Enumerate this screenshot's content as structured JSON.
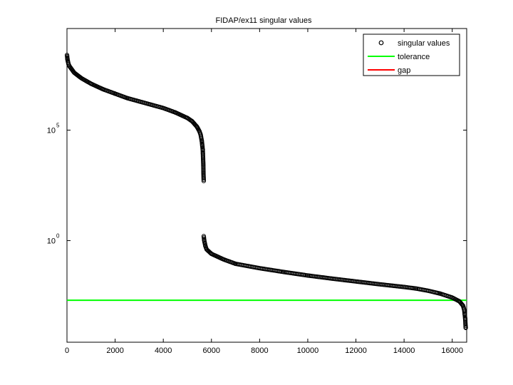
{
  "chart_data": {
    "type": "scatter",
    "title": "FIDAP/ex11 singular values",
    "xlabel": "",
    "ylabel": "",
    "x_ticks": [
      "0",
      "2000",
      "4000",
      "6000",
      "8000",
      "10000",
      "12000",
      "14000",
      "16000"
    ],
    "y_tick_labels": [
      {
        "base": "10",
        "exp": "5",
        "value_log10": 5
      },
      {
        "base": "10",
        "exp": "0",
        "value_log10": 0
      }
    ],
    "xlim": [
      0,
      16600
    ],
    "ylim_log10": [
      -4.6,
      9.6
    ],
    "y_scale": "log",
    "grid": false,
    "legend_position": "top-right",
    "legend": [
      {
        "label": "singular values",
        "marker": "circle",
        "color": "#000000"
      },
      {
        "label": "tolerance",
        "marker": "line",
        "color": "#00ff00"
      },
      {
        "label": "gap",
        "marker": "line",
        "color": "#ff0000"
      }
    ],
    "series": [
      {
        "name": "singular values",
        "type": "scatter",
        "color": "#000000",
        "x": [
          1,
          20,
          60,
          100,
          300,
          600,
          1000,
          1500,
          2000,
          2500,
          3000,
          3500,
          4000,
          4500,
          5000,
          5200,
          5400,
          5500,
          5550,
          5600,
          5620,
          5640,
          5650,
          5660,
          5670,
          5680,
          5680,
          5700,
          5750,
          5800,
          6000,
          6500,
          7000,
          8000,
          9000,
          10000,
          11000,
          12000,
          13000,
          14000,
          14500,
          15000,
          15500,
          16000,
          16300,
          16450,
          16500,
          16520,
          16540,
          16550,
          16560
        ],
        "y_log10": [
          8.4,
          8.2,
          8.0,
          7.9,
          7.6,
          7.35,
          7.1,
          6.85,
          6.65,
          6.45,
          6.3,
          6.15,
          6.0,
          5.8,
          5.55,
          5.4,
          5.15,
          4.95,
          4.8,
          4.5,
          4.3,
          4.1,
          3.8,
          3.5,
          3.0,
          2.7,
          0.2,
          0.0,
          -0.25,
          -0.4,
          -0.6,
          -0.85,
          -1.05,
          -1.25,
          -1.42,
          -1.58,
          -1.72,
          -1.85,
          -1.98,
          -2.1,
          -2.17,
          -2.27,
          -2.4,
          -2.58,
          -2.75,
          -2.95,
          -3.15,
          -3.35,
          -3.55,
          -3.8,
          -3.95
        ]
      },
      {
        "name": "tolerance",
        "type": "hline",
        "color": "#00ff00",
        "y_log10": -2.7
      }
    ]
  }
}
